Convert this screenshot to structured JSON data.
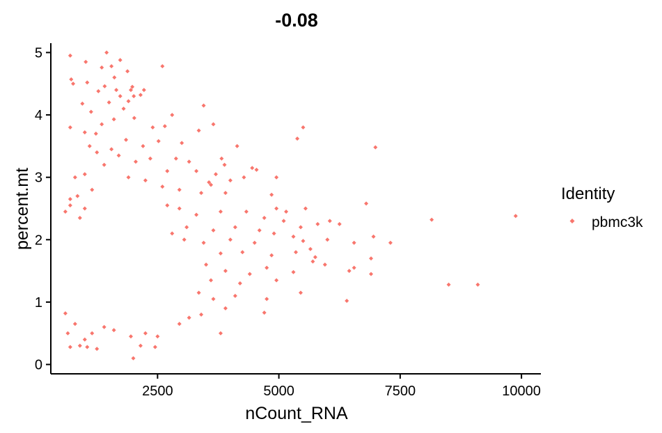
{
  "chart_data": {
    "type": "scatter",
    "title": "-0.08",
    "xlabel": "nCount_RNA",
    "ylabel": "percent.mt",
    "xlim": [
      300,
      10400
    ],
    "ylim": [
      -0.15,
      5.15
    ],
    "x_ticks": [
      2500,
      5000,
      7500,
      10000
    ],
    "x_tick_labels": [
      "2500",
      "5000",
      "7500",
      "10000"
    ],
    "y_ticks": [
      0,
      1,
      2,
      3,
      4,
      5
    ],
    "y_tick_labels": [
      "0",
      "1",
      "2",
      "3",
      "4",
      "5"
    ],
    "grid": false,
    "legend": {
      "title": "Identity",
      "position": "right",
      "entries": [
        "pbmc3k"
      ]
    },
    "point_color": "#F8766D",
    "series": [
      {
        "name": "pbmc3k",
        "points": [
          [
            1450,
            5.0
          ],
          [
            700,
            4.95
          ],
          [
            1730,
            4.88
          ],
          [
            1020,
            4.85
          ],
          [
            2600,
            4.78
          ],
          [
            1550,
            4.78
          ],
          [
            1350,
            4.76
          ],
          [
            1880,
            4.7
          ],
          [
            720,
            4.57
          ],
          [
            760,
            4.5
          ],
          [
            1050,
            4.52
          ],
          [
            1610,
            4.6
          ],
          [
            1410,
            4.46
          ],
          [
            1650,
            4.4
          ],
          [
            1280,
            4.38
          ],
          [
            1950,
            4.4
          ],
          [
            2010,
            4.3
          ],
          [
            2150,
            4.32
          ],
          [
            1730,
            4.3
          ],
          [
            1900,
            4.22
          ],
          [
            1500,
            4.2
          ],
          [
            1800,
            4.1
          ],
          [
            2220,
            4.4
          ],
          [
            1980,
            4.45
          ],
          [
            950,
            4.18
          ],
          [
            1130,
            4.05
          ],
          [
            2800,
            4.0
          ],
          [
            3450,
            4.15
          ],
          [
            2020,
            3.95
          ],
          [
            2650,
            3.82
          ],
          [
            1600,
            3.93
          ],
          [
            1350,
            3.85
          ],
          [
            700,
            3.8
          ],
          [
            1000,
            3.72
          ],
          [
            1230,
            3.7
          ],
          [
            2400,
            3.8
          ],
          [
            3350,
            3.75
          ],
          [
            3650,
            3.85
          ],
          [
            5500,
            3.8
          ],
          [
            5380,
            3.62
          ],
          [
            6990,
            3.48
          ],
          [
            4140,
            3.5
          ],
          [
            3000,
            3.55
          ],
          [
            2520,
            3.58
          ],
          [
            2200,
            3.5
          ],
          [
            1850,
            3.6
          ],
          [
            1550,
            3.45
          ],
          [
            1250,
            3.4
          ],
          [
            1100,
            3.5
          ],
          [
            1700,
            3.35
          ],
          [
            2050,
            3.25
          ],
          [
            2350,
            3.3
          ],
          [
            2880,
            3.3
          ],
          [
            3150,
            3.25
          ],
          [
            3820,
            3.3
          ],
          [
            3880,
            3.2
          ],
          [
            4450,
            3.15
          ],
          [
            4540,
            3.12
          ],
          [
            3700,
            3.05
          ],
          [
            3300,
            3.1
          ],
          [
            2700,
            3.1
          ],
          [
            1400,
            3.2
          ],
          [
            1000,
            3.05
          ],
          [
            800,
            3.0
          ],
          [
            1900,
            3.0
          ],
          [
            2250,
            2.95
          ],
          [
            4280,
            3.0
          ],
          [
            3560,
            2.92
          ],
          [
            4000,
            2.95
          ],
          [
            4950,
            3.0
          ],
          [
            4850,
            2.72
          ],
          [
            3900,
            2.75
          ],
          [
            3600,
            2.88
          ],
          [
            2600,
            2.85
          ],
          [
            2950,
            2.8
          ],
          [
            3400,
            2.75
          ],
          [
            1150,
            2.8
          ],
          [
            850,
            2.7
          ],
          [
            700,
            2.65
          ],
          [
            4950,
            2.5
          ],
          [
            5150,
            2.45
          ],
          [
            5550,
            2.5
          ],
          [
            6800,
            2.58
          ],
          [
            8150,
            2.32
          ],
          [
            9880,
            2.38
          ],
          [
            4700,
            2.35
          ],
          [
            4330,
            2.45
          ],
          [
            3800,
            2.45
          ],
          [
            3300,
            2.4
          ],
          [
            2950,
            2.5
          ],
          [
            2700,
            2.55
          ],
          [
            1000,
            2.5
          ],
          [
            700,
            2.55
          ],
          [
            600,
            2.45
          ],
          [
            900,
            2.35
          ],
          [
            5100,
            2.3
          ],
          [
            5450,
            2.2
          ],
          [
            5800,
            2.25
          ],
          [
            6050,
            2.3
          ],
          [
            6250,
            2.25
          ],
          [
            4900,
            2.1
          ],
          [
            5300,
            2.05
          ],
          [
            4600,
            2.15
          ],
          [
            4100,
            2.2
          ],
          [
            3650,
            2.15
          ],
          [
            3100,
            2.2
          ],
          [
            2800,
            2.1
          ],
          [
            6950,
            2.05
          ],
          [
            7300,
            1.95
          ],
          [
            6550,
            1.95
          ],
          [
            6000,
            2.0
          ],
          [
            5500,
            1.98
          ],
          [
            4500,
            1.95
          ],
          [
            4000,
            2.0
          ],
          [
            3450,
            1.95
          ],
          [
            3050,
            2.0
          ],
          [
            5650,
            1.85
          ],
          [
            5750,
            1.72
          ],
          [
            5350,
            1.8
          ],
          [
            4850,
            1.75
          ],
          [
            4250,
            1.8
          ],
          [
            3800,
            1.78
          ],
          [
            6900,
            1.7
          ],
          [
            5700,
            1.65
          ],
          [
            5950,
            1.6
          ],
          [
            6550,
            1.55
          ],
          [
            6450,
            1.5
          ],
          [
            4750,
            1.55
          ],
          [
            4400,
            1.45
          ],
          [
            3900,
            1.5
          ],
          [
            3500,
            1.6
          ],
          [
            6900,
            1.45
          ],
          [
            5300,
            1.48
          ],
          [
            4950,
            1.35
          ],
          [
            4200,
            1.3
          ],
          [
            3600,
            1.35
          ],
          [
            8500,
            1.28
          ],
          [
            9100,
            1.28
          ],
          [
            5450,
            1.15
          ],
          [
            4750,
            1.05
          ],
          [
            4100,
            1.1
          ],
          [
            3650,
            1.05
          ],
          [
            3350,
            1.15
          ],
          [
            6400,
            1.02
          ],
          [
            4700,
            0.83
          ],
          [
            3900,
            0.9
          ],
          [
            3400,
            0.8
          ],
          [
            3150,
            0.75
          ],
          [
            2950,
            0.65
          ],
          [
            3800,
            0.5
          ],
          [
            2500,
            0.45
          ],
          [
            2250,
            0.5
          ],
          [
            1950,
            0.45
          ],
          [
            2150,
            0.3
          ],
          [
            2450,
            0.28
          ],
          [
            800,
            0.65
          ],
          [
            650,
            0.5
          ],
          [
            1000,
            0.4
          ],
          [
            900,
            0.3
          ],
          [
            1050,
            0.28
          ],
          [
            1250,
            0.25
          ],
          [
            700,
            0.28
          ],
          [
            2000,
            0.1
          ],
          [
            1600,
            0.55
          ],
          [
            1400,
            0.6
          ],
          [
            1150,
            0.5
          ],
          [
            600,
            0.82
          ]
        ]
      }
    ]
  }
}
